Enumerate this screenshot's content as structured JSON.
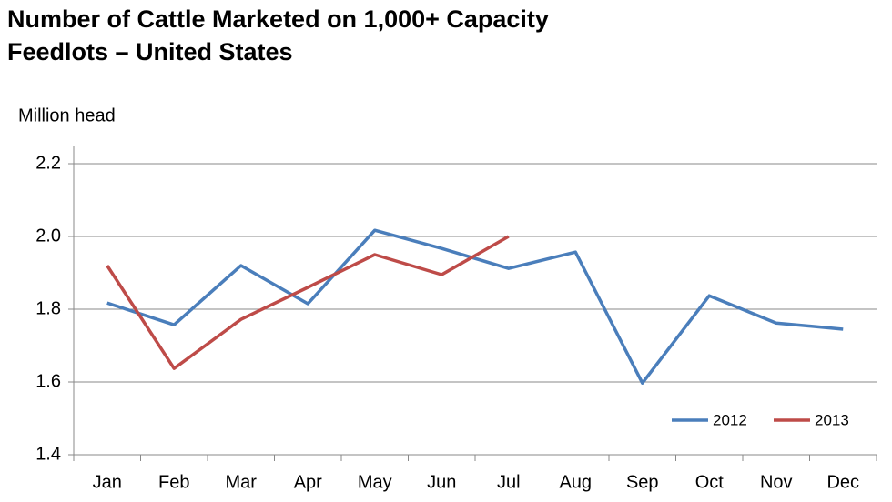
{
  "chart_data": {
    "type": "line",
    "title_lines": [
      "Number of Cattle Marketed on 1,000+ Capacity",
      "Feedlots – United States"
    ],
    "y_label": "Million head",
    "categories": [
      "Jan",
      "Feb",
      "Mar",
      "Apr",
      "May",
      "Jun",
      "Jul",
      "Aug",
      "Sep",
      "Oct",
      "Nov",
      "Dec"
    ],
    "series": [
      {
        "name": "2012",
        "color": "#4a7ebb",
        "values": [
          1.817,
          1.757,
          1.92,
          1.815,
          2.017,
          1.967,
          1.912,
          1.957,
          1.597,
          1.837,
          1.762,
          1.745
        ]
      },
      {
        "name": "2013",
        "color": "#be4b48",
        "values": [
          1.92,
          1.637,
          1.772,
          1.86,
          1.95,
          1.895,
          2.0,
          null,
          null,
          null,
          null,
          null
        ]
      }
    ],
    "ylim": [
      1.4,
      2.2
    ],
    "yticks": [
      1.4,
      1.6,
      1.8,
      {
        "value": 2.0,
        "label": "2.0"
      },
      2.2
    ],
    "grid": true,
    "legend": "lower-right"
  }
}
